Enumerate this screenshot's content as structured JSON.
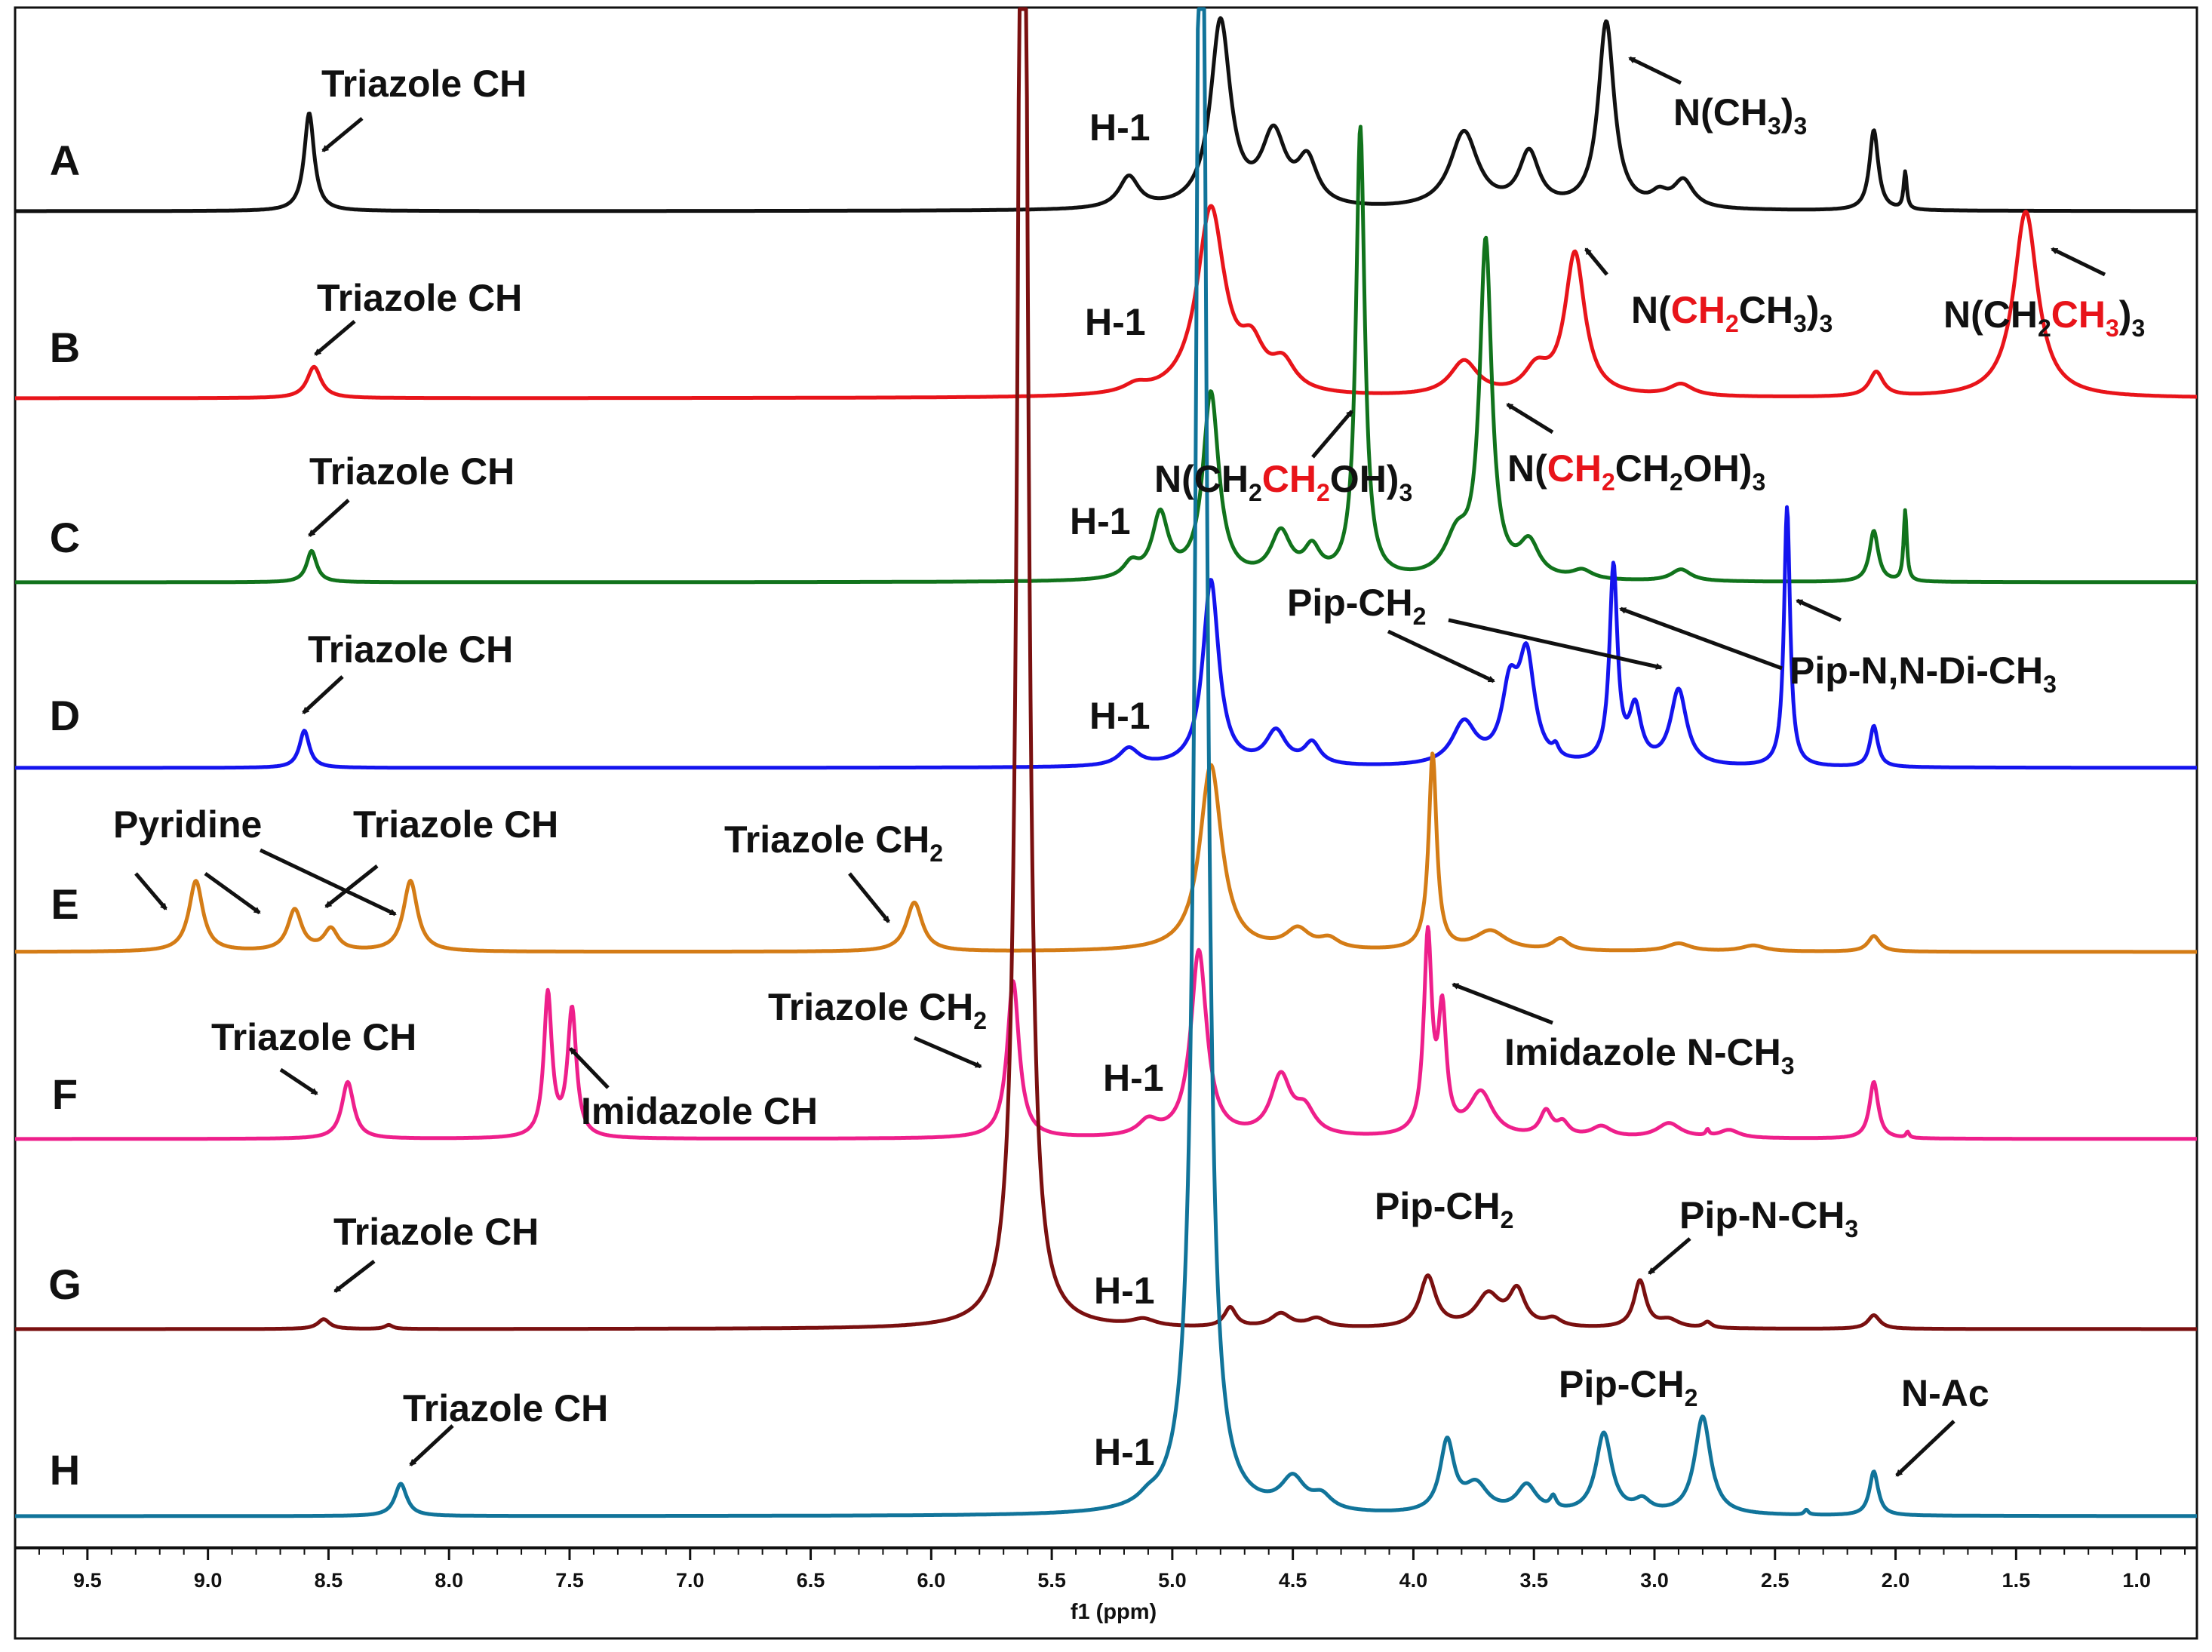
{
  "chart_data": {
    "type": "line",
    "title": "",
    "xlabel": "f1 (ppm)",
    "ylabel": "",
    "xlim": [
      9.8,
      0.75
    ],
    "x_reversed": true,
    "grid": false,
    "x_ticks": [
      "9.5",
      "9.0",
      "8.5",
      "8.0",
      "7.5",
      "7.0",
      "6.5",
      "6.0",
      "5.5",
      "5.0",
      "4.5",
      "4.0",
      "3.5",
      "3.0",
      "2.5",
      "2.0",
      "1.5",
      "1.0"
    ],
    "series": [
      {
        "name": "A",
        "color": "#111111",
        "peaks": [
          [
            8.58,
            1.0,
            0.025
          ],
          [
            5.18,
            0.32,
            0.05
          ],
          [
            4.8,
            1.9,
            0.05
          ],
          [
            4.58,
            0.72,
            0.06
          ],
          [
            4.44,
            0.45,
            0.05
          ],
          [
            3.79,
            0.78,
            0.07
          ],
          [
            3.52,
            0.55,
            0.05
          ],
          [
            3.2,
            1.9,
            0.04
          ],
          [
            2.98,
            0.12,
            0.04
          ],
          [
            2.88,
            0.28,
            0.05
          ],
          [
            2.09,
            0.82,
            0.022
          ],
          [
            1.96,
            0.38,
            0.008
          ]
        ]
      },
      {
        "name": "B",
        "color": "#e8141a",
        "peaks": [
          [
            8.56,
            0.32,
            0.035
          ],
          [
            5.15,
            0.08,
            0.06
          ],
          [
            4.84,
            1.9,
            0.07
          ],
          [
            4.67,
            0.4,
            0.06
          ],
          [
            4.54,
            0.28,
            0.06
          ],
          [
            3.79,
            0.35,
            0.07
          ],
          [
            3.49,
            0.25,
            0.06
          ],
          [
            3.33,
            1.45,
            0.05
          ],
          [
            2.89,
            0.12,
            0.06
          ],
          [
            2.08,
            0.25,
            0.035
          ],
          [
            1.46,
            1.9,
            0.06
          ]
        ]
      },
      {
        "name": "C",
        "color": "#11731c",
        "peaks": [
          [
            8.57,
            0.32,
            0.025
          ],
          [
            5.17,
            0.15,
            0.04
          ],
          [
            5.05,
            0.65,
            0.04
          ],
          [
            4.84,
            1.9,
            0.04
          ],
          [
            4.55,
            0.46,
            0.05
          ],
          [
            4.42,
            0.28,
            0.04
          ],
          [
            4.22,
            4.6,
            0.022
          ],
          [
            3.82,
            0.4,
            0.06
          ],
          [
            3.7,
            3.4,
            0.03
          ],
          [
            3.52,
            0.35,
            0.05
          ],
          [
            3.3,
            0.09,
            0.05
          ],
          [
            2.89,
            0.12,
            0.05
          ],
          [
            2.09,
            0.52,
            0.022
          ],
          [
            1.96,
            0.72,
            0.008
          ]
        ]
      },
      {
        "name": "D",
        "color": "#1414ee",
        "peaks": [
          [
            8.6,
            0.38,
            0.025
          ],
          [
            5.18,
            0.18,
            0.05
          ],
          [
            4.84,
            1.9,
            0.04
          ],
          [
            4.57,
            0.34,
            0.05
          ],
          [
            4.42,
            0.22,
            0.04
          ],
          [
            3.79,
            0.43,
            0.06
          ],
          [
            3.6,
            0.72,
            0.04
          ],
          [
            3.53,
            1.05,
            0.04
          ],
          [
            3.41,
            0.1,
            0.015
          ],
          [
            3.17,
            2.0,
            0.02
          ],
          [
            3.08,
            0.55,
            0.03
          ],
          [
            2.9,
            0.77,
            0.04
          ],
          [
            2.45,
            2.65,
            0.015
          ],
          [
            2.09,
            0.42,
            0.02
          ]
        ]
      },
      {
        "name": "E",
        "color": "#d47c16",
        "peaks": [
          [
            9.05,
            0.72,
            0.035
          ],
          [
            8.64,
            0.42,
            0.035
          ],
          [
            8.49,
            0.22,
            0.035
          ],
          [
            8.16,
            0.72,
            0.035
          ],
          [
            6.07,
            0.5,
            0.04
          ],
          [
            4.84,
            1.9,
            0.055
          ],
          [
            4.48,
            0.2,
            0.06
          ],
          [
            4.35,
            0.1,
            0.05
          ],
          [
            3.92,
            2.0,
            0.02
          ],
          [
            3.68,
            0.2,
            0.08
          ],
          [
            3.39,
            0.12,
            0.04
          ],
          [
            2.9,
            0.08,
            0.06
          ],
          [
            2.59,
            0.06,
            0.06
          ],
          [
            2.09,
            0.16,
            0.03
          ]
        ]
      },
      {
        "name": "F",
        "color": "#ee1f8b",
        "peaks": [
          [
            8.42,
            0.58,
            0.03
          ],
          [
            7.59,
            1.46,
            0.02
          ],
          [
            7.49,
            1.3,
            0.022
          ],
          [
            5.66,
            1.6,
            0.03
          ],
          [
            5.1,
            0.15,
            0.05
          ],
          [
            4.89,
            1.9,
            0.04
          ],
          [
            4.55,
            0.6,
            0.05
          ],
          [
            4.45,
            0.25,
            0.05
          ],
          [
            3.94,
            2.0,
            0.02
          ],
          [
            3.88,
            1.2,
            0.02
          ],
          [
            3.72,
            0.45,
            0.06
          ],
          [
            3.45,
            0.25,
            0.03
          ],
          [
            3.38,
            0.13,
            0.03
          ],
          [
            3.22,
            0.11,
            0.05
          ],
          [
            2.94,
            0.15,
            0.06
          ],
          [
            2.78,
            0.06,
            0.008
          ],
          [
            2.69,
            0.08,
            0.05
          ],
          [
            2.09,
            0.58,
            0.022
          ],
          [
            1.95,
            0.06,
            0.008
          ]
        ]
      },
      {
        "name": "G",
        "color": "#7a1010",
        "peaks": [
          [
            8.52,
            0.1,
            0.03
          ],
          [
            8.25,
            0.04,
            0.02
          ],
          [
            5.62,
            20.0,
            0.022
          ],
          [
            5.12,
            0.07,
            0.06
          ],
          [
            4.76,
            0.2,
            0.03
          ],
          [
            4.55,
            0.14,
            0.05
          ],
          [
            4.4,
            0.09,
            0.05
          ],
          [
            3.94,
            0.52,
            0.04
          ],
          [
            3.69,
            0.33,
            0.06
          ],
          [
            3.57,
            0.36,
            0.04
          ],
          [
            3.42,
            0.08,
            0.04
          ],
          [
            3.06,
            0.48,
            0.03
          ],
          [
            2.94,
            0.08,
            0.05
          ],
          [
            2.78,
            0.06,
            0.02
          ],
          [
            2.09,
            0.14,
            0.03
          ]
        ]
      },
      {
        "name": "H",
        "color": "#11749a",
        "peaks": [
          [
            8.2,
            0.33,
            0.03
          ],
          [
            5.1,
            0.07,
            0.05
          ],
          [
            4.88,
            20.0,
            0.025
          ],
          [
            4.5,
            0.32,
            0.06
          ],
          [
            4.38,
            0.14,
            0.05
          ],
          [
            3.86,
            0.72,
            0.035
          ],
          [
            3.74,
            0.28,
            0.06
          ],
          [
            3.53,
            0.28,
            0.05
          ],
          [
            3.42,
            0.12,
            0.015
          ],
          [
            3.21,
            0.82,
            0.04
          ],
          [
            3.05,
            0.12,
            0.04
          ],
          [
            2.8,
            1.0,
            0.04
          ],
          [
            2.37,
            0.05,
            0.01
          ],
          [
            2.09,
            0.45,
            0.022
          ]
        ]
      }
    ],
    "annotations": [
      "Triazole CH",
      "H-1",
      "N(CH3)3",
      "N(CH2CH3)3",
      "N(CH2CH2OH)3",
      "Pip-CH2",
      "Pip-N,N-Di-CH3",
      "Pyridine",
      "Triazole CH2",
      "Imidazole N-CH3",
      "Imidazole CH",
      "Pip-N-CH3",
      "N-Ac"
    ]
  },
  "labels": {
    "A_triazole": "Triazole CH",
    "A_h1": "H-1",
    "A_nme3_prefix": "N(CH",
    "A_nme3_sub1": "3",
    "A_nme3_mid": ")",
    "A_nme3_sub2": "3",
    "B_triazole": "Triazole CH",
    "B_h1": "H-1",
    "B_ch2_n": "N(",
    "B_ch2_red": "CH",
    "B_ch2_red_sub": "2",
    "B_ch2_rest": "CH",
    "B_ch2_sub1": "3",
    "B_ch2_close": ")",
    "B_ch2_sub2": "3",
    "B_ch3_n": "N(CH",
    "B_ch3_sub0": "2",
    "B_ch3_red": "CH",
    "B_ch3_red_sub": "3",
    "B_ch3_close": ")",
    "B_ch3_sub2": "3",
    "C_triazole": "Triazole CH",
    "C_h1": "H-1",
    "C_a_n": "N(CH",
    "C_a_sub0": "2",
    "C_a_red": "CH",
    "C_a_red_sub": "2",
    "C_a_rest": "OH)",
    "C_a_sub2": "3",
    "C_b_n": "N(",
    "C_b_red": "CH",
    "C_b_red_sub": "2",
    "C_b_rest": "CH",
    "C_b_sub1": "2",
    "C_b_oh": "OH)",
    "C_b_sub2": "3",
    "D_triazole": "Triazole CH",
    "D_h1": "H-1",
    "D_pip": "Pip-CH",
    "D_pip_sub": "2",
    "D_pipnn": "Pip-N,N-Di-CH",
    "D_pipnn_sub": "3",
    "E_pyridine": "Pyridine",
    "E_triazole": "Triazole CH",
    "E_tch2": "Triazole CH",
    "E_tch2_sub": "2",
    "F_triazole": "Triazole CH",
    "F_tch2": "Triazole CH",
    "F_tch2_sub": "2",
    "F_h1": "H-1",
    "F_imid_nme": "Imidazole N-CH",
    "F_imid_nme_sub": "3",
    "F_imid_ch": "Imidazole CH",
    "G_triazole": "Triazole CH",
    "G_h1": "H-1",
    "G_pip": "Pip-CH",
    "G_pip_sub": "2",
    "G_pipnme": "Pip-N-CH",
    "G_pipnme_sub": "3",
    "H_triazole": "Triazole CH",
    "H_h1": "H-1",
    "H_pip": "Pip-CH",
    "H_pip_sub": "2",
    "H_nac": "N-Ac"
  }
}
